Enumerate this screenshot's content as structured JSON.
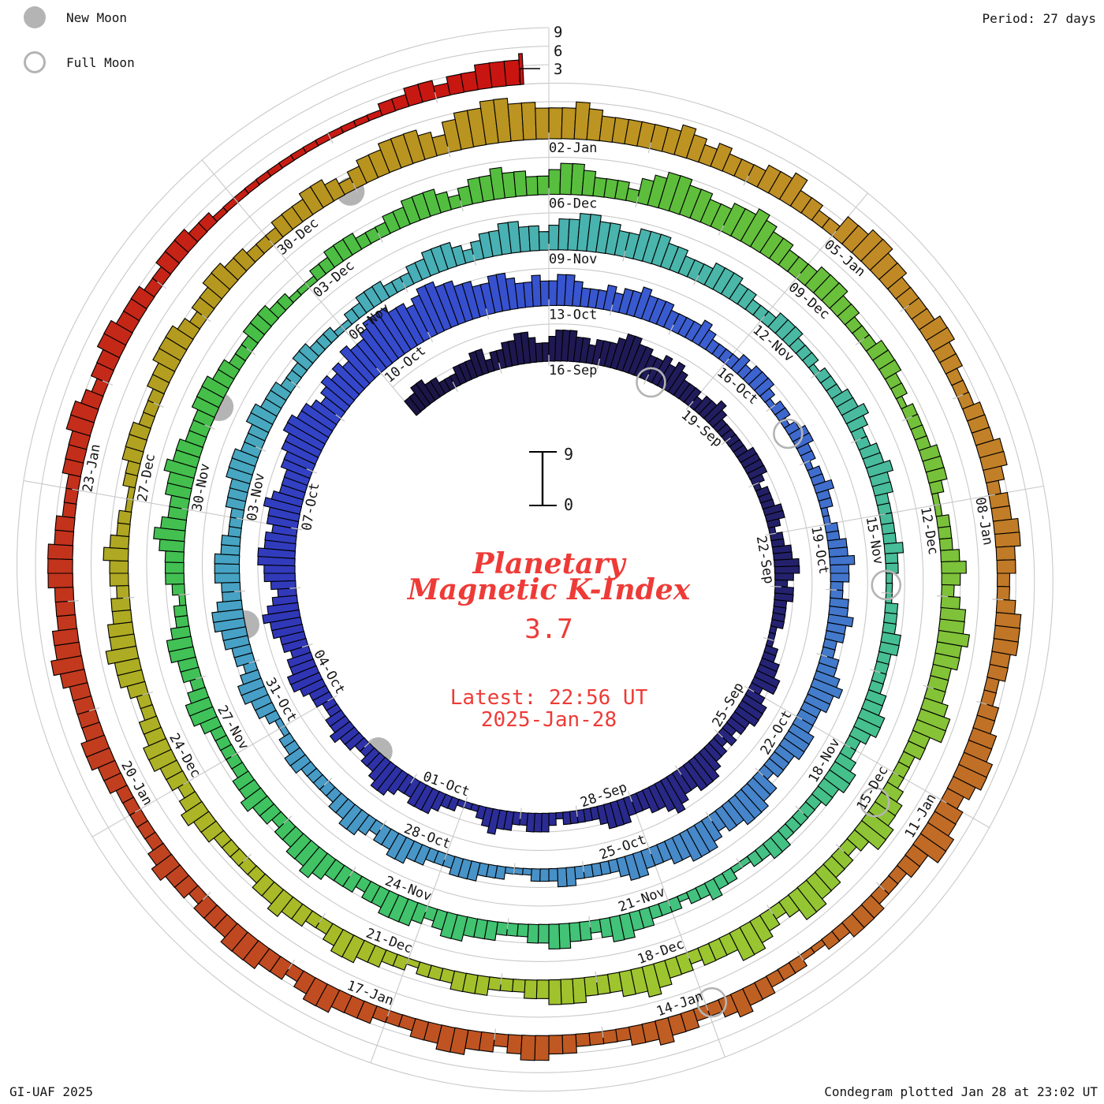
{
  "legend": {
    "new_moon_label": "New Moon",
    "full_moon_label": "Full Moon"
  },
  "header": {
    "period_label": "Period: 27 days"
  },
  "footer": {
    "credit": "GI-UAF 2025",
    "plotted": "Condegram plotted Jan 28 at 23:02 UT"
  },
  "center": {
    "title_line1": "Planetary",
    "title_line2": "Magnetic K-Index",
    "current_value": "3.7",
    "latest_time": "Latest: 22:56 UT",
    "latest_date": "2025-Jan-28",
    "scale_top": "9",
    "scale_bottom": "0"
  },
  "axis": {
    "k_ticks": [
      "3",
      "6",
      "9"
    ]
  },
  "colors": {
    "accent_red": "#ee3b37",
    "moon_gray": "#b4b4b4",
    "grid_gray": "#c9c9c9",
    "bar_outline": "#000000",
    "label_black": "#141414"
  },
  "chart_data": {
    "type": "bar",
    "subtype": "condegram-spiral",
    "title": "Planetary Magnetic K-Index",
    "period_days": 27,
    "bars_per_day": 8,
    "k_range": [
      0,
      9
    ],
    "k_gridlines": [
      3,
      6,
      9
    ],
    "spoke_step_days": 3,
    "start_date": "2024-09-13",
    "top_reference_date": "2024-09-16",
    "end_day_offset": 134.78,
    "current_k": 3.7,
    "k_by_day": [
      "33443322",
      "23334423",
      "34455433",
      "45554434",
      "44566554",
      "45454333",
      "23343222",
      "22233332",
      "12223321",
      "22334432",
      "33222211",
      "12233442",
      "34443323",
      "23345554",
      "45654433",
      "34443222",
      "22123332",
      "23343211",
      "12234443",
      "34554332",
      "23343322",
      "33455443",
      "44556543",
      "45566554",
      "55654445",
      "56677665",
      "45656576",
      "67888776",
      "78877665",
      "56654454",
      "45543334",
      "34454443",
      "33343222",
      "23233321",
      "22123322",
      "12232211",
      "22334332",
      "23343322",
      "33454433",
      "34443332",
      "44555443",
      "45554433",
      "34432222",
      "23322211",
      "12223332",
      "22334433",
      "23443322",
      "22233221",
      "12334432",
      "33445543",
      "34443322",
      "23334443",
      "33443332",
      "22332221",
      "12233322",
      "23344432",
      "34455443",
      "45566554",
      "45554433",
      "34443322",
      "23332221",
      "22233432",
      "23343322",
      "22232211",
      "12223322",
      "22334432",
      "23443322",
      "22233221",
      "12232212",
      "22334432",
      "33443322",
      "23334432",
      "34443323",
      "33454433",
      "23343322",
      "22234432",
      "33443221",
      "23334543",
      "34454433",
      "34443322",
      "23332211",
      "12233322",
      "23344432",
      "34454433",
      "45543332",
      "45665544",
      "55654433",
      "34443322",
      "23332212",
      "22233321",
      "12223432",
      "34454433",
      "34553322",
      "23445532",
      "33445532",
      "34553332",
      "33454433",
      "34443322",
      "23332221",
      "22334432",
      "23343322",
      "22233432",
      "33443322",
      "34454433",
      "23343221",
      "12233322",
      "23344432",
      "33443322",
      "23334432",
      "34455543",
      "56677665",
      "55654444",
      "44543433",
      "34453322",
      "44554433",
      "33443322",
      "23334432",
      "33443322",
      "34443322",
      "33445543",
      "44553322",
      "23332211",
      "22233432",
      "23343322",
      "22334432",
      "33443322",
      "23334432",
      "33444333",
      "23343222",
      "22334433",
      "33454433",
      "34443322",
      "23334432",
      "33443332",
      "23332211",
      "11111111",
      "11112233",
      "23344454"
    ],
    "date_labels": [
      {
        "t": 0,
        "text": "16-Sep"
      },
      {
        "t": 27,
        "text": "13-Oct"
      },
      {
        "t": 54,
        "text": "09-Nov"
      },
      {
        "t": 81,
        "text": "06-Dec"
      },
      {
        "t": 108,
        "text": "02-Jan"
      },
      {
        "t": 3,
        "text": "19-Sep"
      },
      {
        "t": 30,
        "text": "16-Oct"
      },
      {
        "t": 57,
        "text": "12-Nov"
      },
      {
        "t": 84,
        "text": "09-Dec"
      },
      {
        "t": 111,
        "text": "05-Jan"
      },
      {
        "t": 6,
        "text": "22-Sep"
      },
      {
        "t": 33,
        "text": "19-Oct"
      },
      {
        "t": 60,
        "text": "15-Nov"
      },
      {
        "t": 87,
        "text": "12-Dec"
      },
      {
        "t": 114,
        "text": "08-Jan"
      },
      {
        "t": 9,
        "text": "25-Sep"
      },
      {
        "t": 36,
        "text": "22-Oct"
      },
      {
        "t": 63,
        "text": "18-Nov"
      },
      {
        "t": 90,
        "text": "15-Dec"
      },
      {
        "t": 117,
        "text": "11-Jan"
      },
      {
        "t": 12,
        "text": "28-Sep"
      },
      {
        "t": 39,
        "text": "25-Oct"
      },
      {
        "t": 66,
        "text": "21-Nov"
      },
      {
        "t": 93,
        "text": "18-Dec"
      },
      {
        "t": 120,
        "text": "14-Jan"
      },
      {
        "t": 15,
        "text": "01-Oct"
      },
      {
        "t": 42,
        "text": "28-Oct"
      },
      {
        "t": 69,
        "text": "24-Nov"
      },
      {
        "t": 96,
        "text": "21-Dec"
      },
      {
        "t": 123,
        "text": "17-Jan"
      },
      {
        "t": 18,
        "text": "04-Oct"
      },
      {
        "t": 45,
        "text": "31-Oct"
      },
      {
        "t": 72,
        "text": "27-Nov"
      },
      {
        "t": 99,
        "text": "24-Dec"
      },
      {
        "t": 126,
        "text": "20-Jan"
      },
      {
        "t": 21,
        "text": "07-Oct"
      },
      {
        "t": 48,
        "text": "03-Nov"
      },
      {
        "t": 75,
        "text": "30-Nov"
      },
      {
        "t": 102,
        "text": "27-Dec"
      },
      {
        "t": 129,
        "text": "23-Jan"
      },
      {
        "t": 24,
        "text": "10-Oct"
      },
      {
        "t": 51,
        "text": "06-Nov"
      },
      {
        "t": 78,
        "text": "03-Dec"
      },
      {
        "t": 105,
        "text": "30-Dec"
      }
    ],
    "moons": {
      "new_moon_t": [
        16.78,
        46.53,
        76.26,
        105.94
      ],
      "full_moon_t": [
        2.11,
        31.48,
        60.9,
        90.38,
        119.94
      ]
    },
    "colormap_stops": [
      [
        -3,
        "#1b1545"
      ],
      [
        6,
        "#232069"
      ],
      [
        13,
        "#2a2a8f"
      ],
      [
        19,
        "#3036b6"
      ],
      [
        24,
        "#3448cc"
      ],
      [
        29,
        "#3a5cd0"
      ],
      [
        34,
        "#4276cc"
      ],
      [
        40,
        "#488fc8"
      ],
      [
        46,
        "#47a0c7"
      ],
      [
        52,
        "#48aeb8"
      ],
      [
        57,
        "#4ab8a6"
      ],
      [
        62,
        "#46bf92"
      ],
      [
        67,
        "#42c378"
      ],
      [
        72,
        "#3fc25c"
      ],
      [
        77,
        "#46be46"
      ],
      [
        82,
        "#5cbe3c"
      ],
      [
        88,
        "#7ec23a"
      ],
      [
        93,
        "#9cc630"
      ],
      [
        98,
        "#aab826"
      ],
      [
        102,
        "#b0a522"
      ],
      [
        105,
        "#b6941e"
      ],
      [
        109,
        "#bd9422"
      ],
      [
        113,
        "#c28428"
      ],
      [
        117,
        "#c06c26"
      ],
      [
        121,
        "#bf5a22"
      ],
      [
        125,
        "#c04621"
      ],
      [
        129,
        "#c3301b"
      ],
      [
        132,
        "#c61f14"
      ],
      [
        135,
        "#c91310"
      ]
    ]
  }
}
